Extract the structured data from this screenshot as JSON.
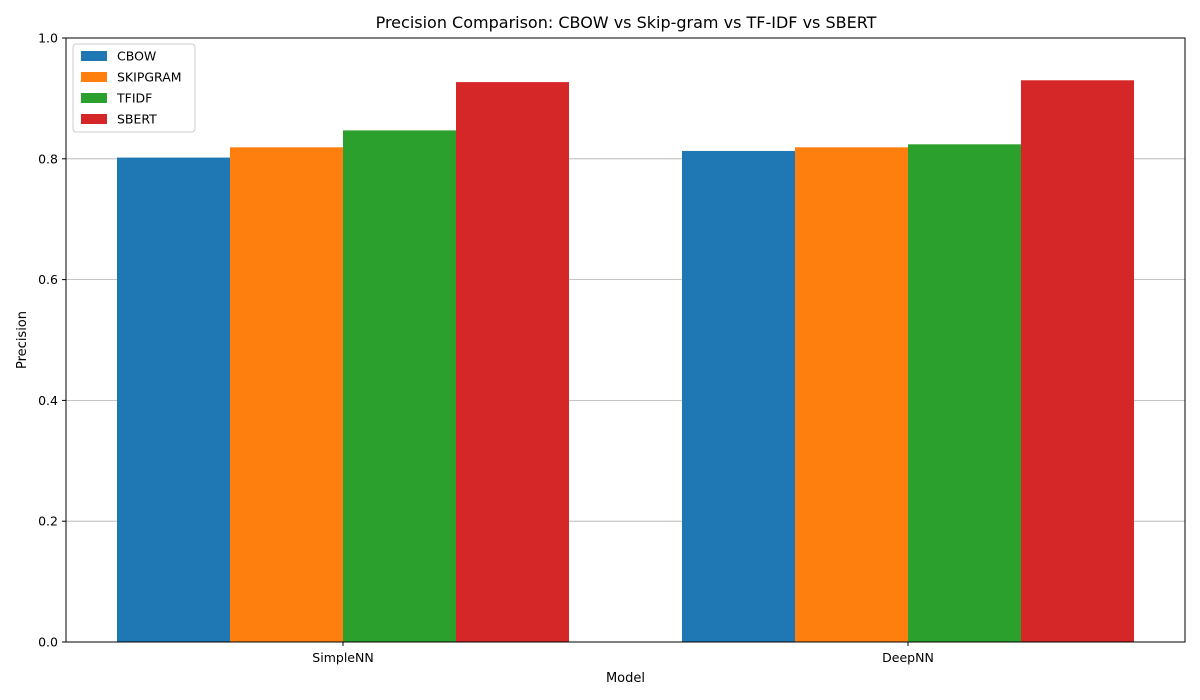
{
  "chart_data": {
    "type": "bar",
    "title": "Precision Comparison: CBOW vs Skip-gram vs TF-IDF vs SBERT",
    "xlabel": "Model",
    "ylabel": "Precision",
    "ylim": [
      0,
      1.0
    ],
    "yticks": [
      "0.0",
      "0.2",
      "0.4",
      "0.6",
      "0.8",
      "1.0"
    ],
    "categories": [
      "SimpleNN",
      "DeepNN"
    ],
    "grid": "y",
    "legend_position": "top-left",
    "series": [
      {
        "name": "CBOW",
        "color": "#1f77b4",
        "values": [
          0.802,
          0.813
        ]
      },
      {
        "name": "SKIPGRAM",
        "color": "#ff7f0e",
        "values": [
          0.819,
          0.819
        ]
      },
      {
        "name": "TFIDF",
        "color": "#2ca02c",
        "values": [
          0.847,
          0.824
        ]
      },
      {
        "name": "SBERT",
        "color": "#d62728",
        "values": [
          0.927,
          0.93
        ]
      }
    ]
  }
}
